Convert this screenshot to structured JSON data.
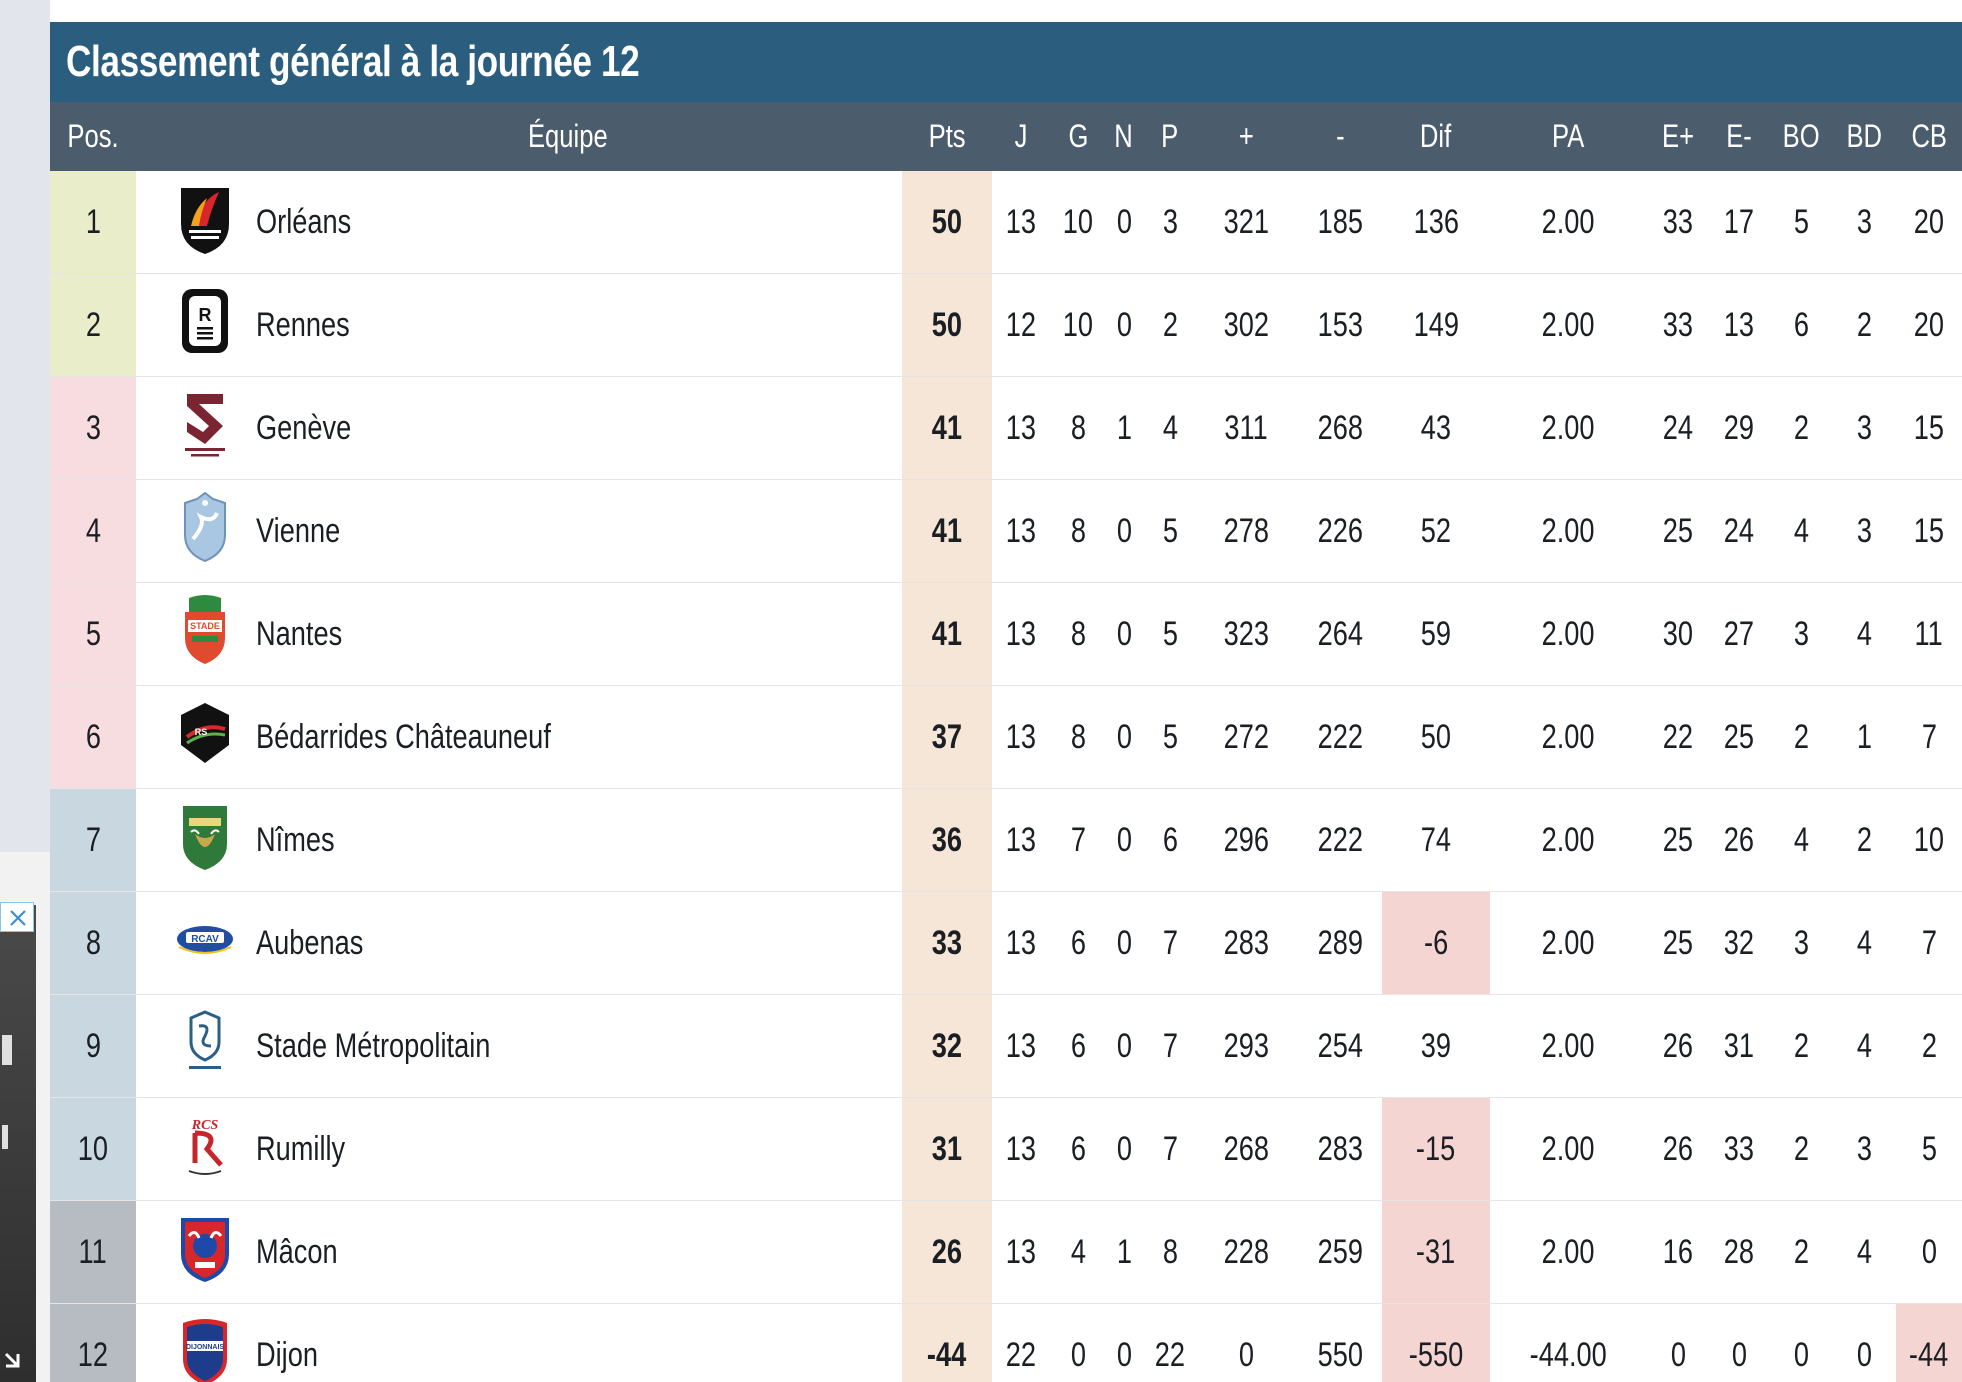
{
  "title": "Classement général à la journée 12",
  "headers": {
    "pos": "Pos.",
    "team": "Équipe",
    "pts": "Pts",
    "j": "J",
    "g": "G",
    "n": "N",
    "p": "P",
    "plus": "+",
    "minus": "-",
    "dif": "Dif",
    "pa": "PA",
    "eplus": "E+",
    "eminus": "E-",
    "bo": "BO",
    "bd": "BD",
    "cb": "CB"
  },
  "colors": {
    "title_bar": "#2b5e7e",
    "header_bar": "#4b5d6c",
    "zone_top": "#e9edc9",
    "zone_playoff": "#f8dde0",
    "zone_mid": "#c9d7e0",
    "zone_relegation": "#b7bcc2",
    "pts_column": "#f5e6d8",
    "negative_highlight": "#f4d5d2"
  },
  "rows": [
    {
      "pos": "1",
      "team": "Orléans",
      "logo": "orleans-logo",
      "zone": "top",
      "pts": "50",
      "j": "13",
      "g": "10",
      "n": "0",
      "p": "3",
      "plus": "321",
      "minus": "185",
      "dif": "136",
      "pa": "2.00",
      "eplus": "33",
      "eminus": "17",
      "bo": "5",
      "bd": "3",
      "cb": "20"
    },
    {
      "pos": "2",
      "team": "Rennes",
      "logo": "rennes-logo",
      "zone": "top",
      "pts": "50",
      "j": "12",
      "g": "10",
      "n": "0",
      "p": "2",
      "plus": "302",
      "minus": "153",
      "dif": "149",
      "pa": "2.00",
      "eplus": "33",
      "eminus": "13",
      "bo": "6",
      "bd": "2",
      "cb": "20"
    },
    {
      "pos": "3",
      "team": "Genève",
      "logo": "geneve-logo",
      "zone": "playoff",
      "pts": "41",
      "j": "13",
      "g": "8",
      "n": "1",
      "p": "4",
      "plus": "311",
      "minus": "268",
      "dif": "43",
      "pa": "2.00",
      "eplus": "24",
      "eminus": "29",
      "bo": "2",
      "bd": "3",
      "cb": "15"
    },
    {
      "pos": "4",
      "team": "Vienne",
      "logo": "vienne-logo",
      "zone": "playoff",
      "pts": "41",
      "j": "13",
      "g": "8",
      "n": "0",
      "p": "5",
      "plus": "278",
      "minus": "226",
      "dif": "52",
      "pa": "2.00",
      "eplus": "25",
      "eminus": "24",
      "bo": "4",
      "bd": "3",
      "cb": "15"
    },
    {
      "pos": "5",
      "team": "Nantes",
      "logo": "nantes-logo",
      "zone": "playoff",
      "pts": "41",
      "j": "13",
      "g": "8",
      "n": "0",
      "p": "5",
      "plus": "323",
      "minus": "264",
      "dif": "59",
      "pa": "2.00",
      "eplus": "30",
      "eminus": "27",
      "bo": "3",
      "bd": "4",
      "cb": "11"
    },
    {
      "pos": "6",
      "team": "Bédarrides Châteauneuf",
      "logo": "bedarrides-logo",
      "zone": "playoff",
      "pts": "37",
      "j": "13",
      "g": "8",
      "n": "0",
      "p": "5",
      "plus": "272",
      "minus": "222",
      "dif": "50",
      "pa": "2.00",
      "eplus": "22",
      "eminus": "25",
      "bo": "2",
      "bd": "1",
      "cb": "7"
    },
    {
      "pos": "7",
      "team": "Nîmes",
      "logo": "nimes-logo",
      "zone": "mid",
      "pts": "36",
      "j": "13",
      "g": "7",
      "n": "0",
      "p": "6",
      "plus": "296",
      "minus": "222",
      "dif": "74",
      "pa": "2.00",
      "eplus": "25",
      "eminus": "26",
      "bo": "4",
      "bd": "2",
      "cb": "10"
    },
    {
      "pos": "8",
      "team": "Aubenas",
      "logo": "aubenas-logo",
      "zone": "mid",
      "pts": "33",
      "j": "13",
      "g": "6",
      "n": "0",
      "p": "7",
      "plus": "283",
      "minus": "289",
      "dif": "-6",
      "pa": "2.00",
      "eplus": "25",
      "eminus": "32",
      "bo": "3",
      "bd": "4",
      "cb": "7"
    },
    {
      "pos": "9",
      "team": "Stade Métropolitain",
      "logo": "stade-metropolitain-logo",
      "zone": "mid",
      "pts": "32",
      "j": "13",
      "g": "6",
      "n": "0",
      "p": "7",
      "plus": "293",
      "minus": "254",
      "dif": "39",
      "pa": "2.00",
      "eplus": "26",
      "eminus": "31",
      "bo": "2",
      "bd": "4",
      "cb": "2"
    },
    {
      "pos": "10",
      "team": "Rumilly",
      "logo": "rumilly-logo",
      "zone": "mid",
      "pts": "31",
      "j": "13",
      "g": "6",
      "n": "0",
      "p": "7",
      "plus": "268",
      "minus": "283",
      "dif": "-15",
      "pa": "2.00",
      "eplus": "26",
      "eminus": "33",
      "bo": "2",
      "bd": "3",
      "cb": "5"
    },
    {
      "pos": "11",
      "team": "Mâcon",
      "logo": "macon-logo",
      "zone": "relegation",
      "pts": "26",
      "j": "13",
      "g": "4",
      "n": "1",
      "p": "8",
      "plus": "228",
      "minus": "259",
      "dif": "-31",
      "pa": "2.00",
      "eplus": "16",
      "eminus": "28",
      "bo": "2",
      "bd": "4",
      "cb": "0"
    },
    {
      "pos": "12",
      "team": "Dijon",
      "logo": "dijon-logo",
      "zone": "relegation",
      "pts": "-44",
      "j": "22",
      "g": "0",
      "n": "0",
      "p": "22",
      "plus": "0",
      "minus": "550",
      "dif": "-550",
      "pa": "-44.00",
      "eplus": "0",
      "eminus": "0",
      "bo": "0",
      "bd": "0",
      "cb": "-44"
    }
  ]
}
